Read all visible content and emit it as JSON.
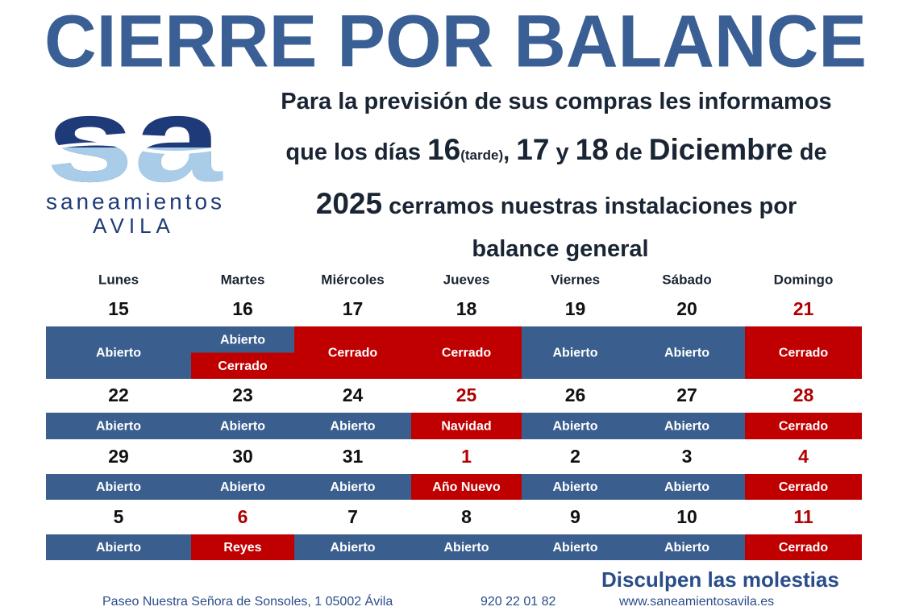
{
  "title": "CIERRE POR BALANCE",
  "logo": {
    "mark": "sa",
    "name": "saneamientos",
    "city": "AVILA"
  },
  "message": {
    "line1": "Para la previsión de sus compras les informamos",
    "line2": [
      "que los días ",
      "16",
      "(tarde)",
      ", ",
      "17",
      " y ",
      "18",
      " de ",
      "Diciembre",
      " de"
    ],
    "line3": [
      "2025",
      " cerramos nuestras instalaciones por"
    ],
    "line4": "balance general"
  },
  "calendar": {
    "weekdays": [
      "Lunes",
      "Martes",
      "Miércoles",
      "Jueves",
      "Viernes",
      "Sábado",
      "Domingo"
    ],
    "weeks": [
      [
        {
          "day": 15,
          "color": "#111111",
          "status": [
            {
              "text": "Abierto",
              "color": "#3a5f8f"
            }
          ]
        },
        {
          "day": 16,
          "color": "#111111",
          "status": [
            {
              "text": "Abierto",
              "color": "#3a5f8f"
            },
            {
              "text": "Cerrado",
              "color": "#c00000"
            }
          ]
        },
        {
          "day": 17,
          "color": "#111111",
          "status": [
            {
              "text": "Cerrado",
              "color": "#c00000"
            }
          ]
        },
        {
          "day": 18,
          "color": "#111111",
          "status": [
            {
              "text": "Cerrado",
              "color": "#c00000"
            }
          ]
        },
        {
          "day": 19,
          "color": "#111111",
          "status": [
            {
              "text": "Abierto",
              "color": "#3a5f8f"
            }
          ]
        },
        {
          "day": 20,
          "color": "#111111",
          "status": [
            {
              "text": "Abierto",
              "color": "#3a5f8f"
            }
          ]
        },
        {
          "day": 21,
          "color": "#b00000",
          "status": [
            {
              "text": "Cerrado",
              "color": "#c00000"
            }
          ]
        }
      ],
      [
        {
          "day": 22,
          "color": "#111111",
          "status": [
            {
              "text": "Abierto",
              "color": "#3a5f8f"
            }
          ]
        },
        {
          "day": 23,
          "color": "#111111",
          "status": [
            {
              "text": "Abierto",
              "color": "#3a5f8f"
            }
          ]
        },
        {
          "day": 24,
          "color": "#111111",
          "status": [
            {
              "text": "Abierto",
              "color": "#3a5f8f"
            }
          ]
        },
        {
          "day": 25,
          "color": "#b00000",
          "status": [
            {
              "text": "Navidad",
              "color": "#c00000"
            }
          ]
        },
        {
          "day": 26,
          "color": "#111111",
          "status": [
            {
              "text": "Abierto",
              "color": "#3a5f8f"
            }
          ]
        },
        {
          "day": 27,
          "color": "#111111",
          "status": [
            {
              "text": "Abierto",
              "color": "#3a5f8f"
            }
          ]
        },
        {
          "day": 28,
          "color": "#b00000",
          "status": [
            {
              "text": "Cerrado",
              "color": "#c00000"
            }
          ]
        }
      ],
      [
        {
          "day": 29,
          "color": "#111111",
          "status": [
            {
              "text": "Abierto",
              "color": "#3a5f8f"
            }
          ]
        },
        {
          "day": 30,
          "color": "#111111",
          "status": [
            {
              "text": "Abierto",
              "color": "#3a5f8f"
            }
          ]
        },
        {
          "day": 31,
          "color": "#111111",
          "status": [
            {
              "text": "Abierto",
              "color": "#3a5f8f"
            }
          ]
        },
        {
          "day": 1,
          "color": "#b00000",
          "status": [
            {
              "text": "Año Nuevo",
              "color": "#c00000"
            }
          ]
        },
        {
          "day": 2,
          "color": "#111111",
          "status": [
            {
              "text": "Abierto",
              "color": "#3a5f8f"
            }
          ]
        },
        {
          "day": 3,
          "color": "#111111",
          "status": [
            {
              "text": "Abierto",
              "color": "#3a5f8f"
            }
          ]
        },
        {
          "day": 4,
          "color": "#b00000",
          "status": [
            {
              "text": "Cerrado",
              "color": "#c00000"
            }
          ]
        }
      ],
      [
        {
          "day": 5,
          "color": "#111111",
          "status": [
            {
              "text": "Abierto",
              "color": "#3a5f8f"
            }
          ]
        },
        {
          "day": 6,
          "color": "#b00000",
          "status": [
            {
              "text": "Reyes",
              "color": "#c00000"
            }
          ]
        },
        {
          "day": 7,
          "color": "#111111",
          "status": [
            {
              "text": "Abierto",
              "color": "#3a5f8f"
            }
          ]
        },
        {
          "day": 8,
          "color": "#111111",
          "status": [
            {
              "text": "Abierto",
              "color": "#3a5f8f"
            }
          ]
        },
        {
          "day": 9,
          "color": "#111111",
          "status": [
            {
              "text": "Abierto",
              "color": "#3a5f8f"
            }
          ]
        },
        {
          "day": 10,
          "color": "#111111",
          "status": [
            {
              "text": "Abierto",
              "color": "#3a5f8f"
            }
          ]
        },
        {
          "day": 11,
          "color": "#b00000",
          "status": [
            {
              "text": "Cerrado",
              "color": "#c00000"
            }
          ]
        }
      ]
    ]
  },
  "footer": {
    "apology": "Disculpen las molestias",
    "address": "Paseo Nuestra Señora de Sonsoles, 1 05002 Ávila",
    "phone": "920 22 01 82",
    "web": "www.saneamientosavila.es"
  }
}
